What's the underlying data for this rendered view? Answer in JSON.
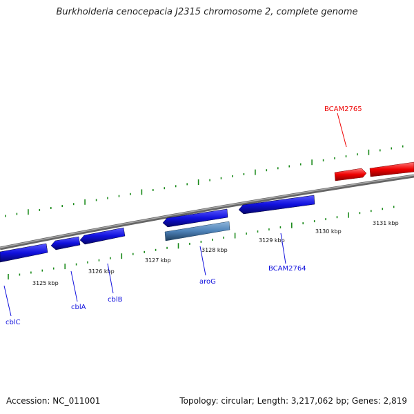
{
  "title": "Burkholderia cenocepacia J2315 chromosome 2, complete genome",
  "footer": {
    "accession": "Accession: NC_011001",
    "summary": "Topology: circular; Length: 3,217,062 bp; Genes: 2,819"
  },
  "colors": {
    "forward_gene": "#ee0000",
    "reverse_gene": "#1010dd",
    "gene_highlight": "#4d82b8",
    "backbone": "#888888",
    "ticks": "#1a8a1a",
    "scale_label": "#111111"
  },
  "scale": {
    "unit": "kbp",
    "labels": [
      "3125 kbp",
      "3126 kbp",
      "3127 kbp",
      "3128 kbp",
      "3129 kbp",
      "3130 kbp",
      "3131 kbp"
    ]
  },
  "genes": [
    {
      "label": "BCAM2765",
      "strand": "+",
      "color": "#ee0000"
    },
    {
      "label": "BCAM2764",
      "strand": "-",
      "color": "#1010dd"
    },
    {
      "label": "aroG",
      "strand": "-",
      "color": "#1010dd"
    },
    {
      "label": "cblB",
      "strand": "-",
      "color": "#1010dd"
    },
    {
      "label": "cblA",
      "strand": "-",
      "color": "#1010dd"
    },
    {
      "label": "cblC",
      "strand": "-",
      "color": "#1010dd"
    }
  ]
}
